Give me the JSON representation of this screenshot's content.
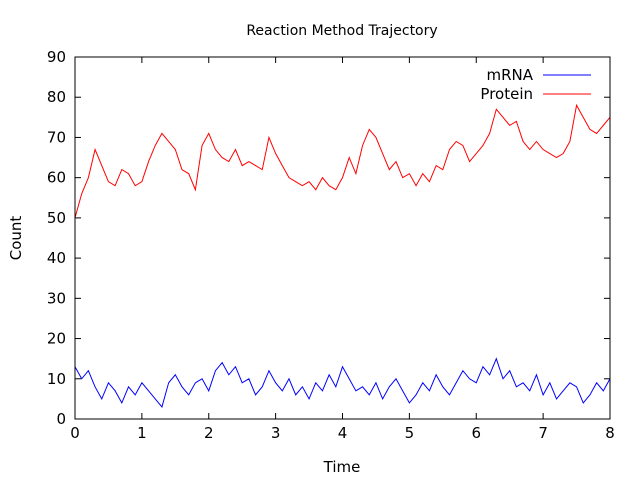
{
  "chart_data": {
    "type": "line",
    "title": "Reaction Method Trajectory",
    "xlabel": "Time",
    "ylabel": "Count",
    "xlim": [
      0,
      8
    ],
    "ylim": [
      0,
      90
    ],
    "xticks": [
      "0",
      "1",
      "2",
      "3",
      "4",
      "5",
      "6",
      "7",
      "8"
    ],
    "yticks": [
      "0",
      "10",
      "20",
      "30",
      "40",
      "50",
      "60",
      "70",
      "80",
      "90"
    ],
    "grid": false,
    "legend_position": "top-right",
    "series": [
      {
        "name": "mRNA",
        "color": "#0000ff",
        "x": [
          0,
          0.1,
          0.2,
          0.3,
          0.4,
          0.5,
          0.6,
          0.7,
          0.8,
          0.9,
          1.0,
          1.1,
          1.2,
          1.3,
          1.4,
          1.5,
          1.6,
          1.7,
          1.8,
          1.9,
          2.0,
          2.1,
          2.2,
          2.3,
          2.4,
          2.5,
          2.6,
          2.7,
          2.8,
          2.9,
          3.0,
          3.1,
          3.2,
          3.3,
          3.4,
          3.5,
          3.6,
          3.7,
          3.8,
          3.9,
          4.0,
          4.1,
          4.2,
          4.3,
          4.4,
          4.5,
          4.6,
          4.7,
          4.8,
          4.9,
          5.0,
          5.1,
          5.2,
          5.3,
          5.4,
          5.5,
          5.6,
          5.7,
          5.8,
          5.9,
          6.0,
          6.1,
          6.2,
          6.3,
          6.4,
          6.5,
          6.6,
          6.7,
          6.8,
          6.9,
          7.0,
          7.1,
          7.2,
          7.3,
          7.4,
          7.5,
          7.6,
          7.7,
          7.8,
          7.9,
          8.0
        ],
        "y": [
          13,
          10,
          12,
          8,
          5,
          9,
          7,
          4,
          8,
          6,
          9,
          7,
          5,
          3,
          9,
          11,
          8,
          6,
          9,
          10,
          7,
          12,
          14,
          11,
          13,
          9,
          10,
          6,
          8,
          12,
          9,
          7,
          10,
          6,
          8,
          5,
          9,
          7,
          11,
          8,
          13,
          10,
          7,
          8,
          6,
          9,
          5,
          8,
          10,
          7,
          4,
          6,
          9,
          7,
          11,
          8,
          6,
          9,
          12,
          10,
          9,
          13,
          11,
          15,
          10,
          12,
          8,
          9,
          7,
          11,
          6,
          9,
          5,
          7,
          9,
          8,
          4,
          6,
          9,
          7,
          10
        ]
      },
      {
        "name": "Protein",
        "color": "#ff0000",
        "x": [
          0,
          0.1,
          0.2,
          0.3,
          0.4,
          0.5,
          0.6,
          0.7,
          0.8,
          0.9,
          1.0,
          1.1,
          1.2,
          1.3,
          1.4,
          1.5,
          1.6,
          1.7,
          1.8,
          1.9,
          2.0,
          2.1,
          2.2,
          2.3,
          2.4,
          2.5,
          2.6,
          2.7,
          2.8,
          2.9,
          3.0,
          3.1,
          3.2,
          3.3,
          3.4,
          3.5,
          3.6,
          3.7,
          3.8,
          3.9,
          4.0,
          4.1,
          4.2,
          4.3,
          4.4,
          4.5,
          4.6,
          4.7,
          4.8,
          4.9,
          5.0,
          5.1,
          5.2,
          5.3,
          5.4,
          5.5,
          5.6,
          5.7,
          5.8,
          5.9,
          6.0,
          6.1,
          6.2,
          6.3,
          6.4,
          6.5,
          6.6,
          6.7,
          6.8,
          6.9,
          7.0,
          7.1,
          7.2,
          7.3,
          7.4,
          7.5,
          7.6,
          7.7,
          7.8,
          7.9,
          8.0
        ],
        "y": [
          50,
          56,
          60,
          67,
          63,
          59,
          58,
          62,
          61,
          58,
          59,
          64,
          68,
          71,
          69,
          67,
          62,
          61,
          57,
          68,
          71,
          67,
          65,
          64,
          67,
          63,
          64,
          63,
          62,
          70,
          66,
          63,
          60,
          59,
          58,
          59,
          57,
          60,
          58,
          57,
          60,
          65,
          61,
          68,
          72,
          70,
          66,
          62,
          64,
          60,
          61,
          58,
          61,
          59,
          63,
          62,
          67,
          69,
          68,
          64,
          66,
          68,
          71,
          77,
          75,
          73,
          74,
          69,
          67,
          69,
          67,
          66,
          65,
          66,
          69,
          78,
          75,
          72,
          71,
          73,
          75
        ]
      }
    ]
  }
}
